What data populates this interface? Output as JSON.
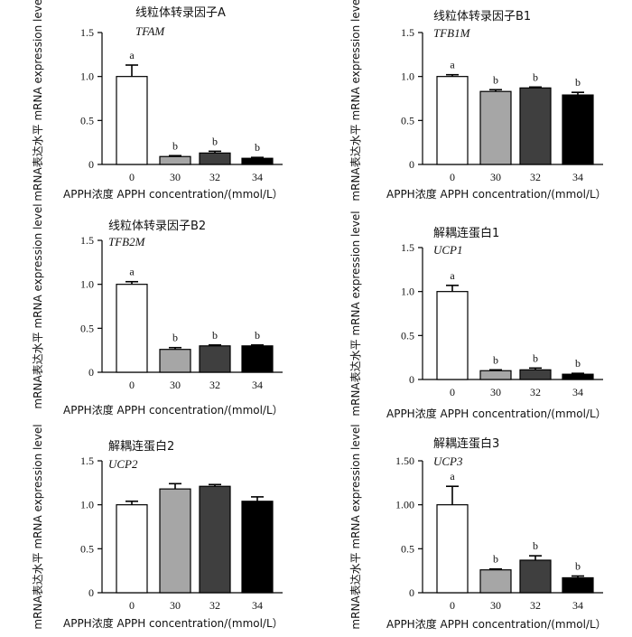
{
  "chart_data": [
    {
      "type": "bar",
      "title": "线粒体转录因子A",
      "subtitle": "TFAM",
      "xlabel": "APPH浓度 APPH concentration/(mmol/L）",
      "ylabel": "mRNA表达水平 mRNA expression level",
      "ylim": [
        0,
        1.5
      ],
      "yticks": [
        0,
        0.5,
        1.0,
        1.5
      ],
      "ytick_labels": [
        "0",
        "0.5",
        "1.0",
        "1.5"
      ],
      "categories": [
        "0",
        "30",
        "32",
        "34"
      ],
      "values": [
        1.0,
        0.09,
        0.13,
        0.07
      ],
      "errors": [
        0.13,
        0.01,
        0.02,
        0.01
      ],
      "significance": [
        "a",
        "b",
        "b",
        "b"
      ],
      "colors": [
        "#ffffff",
        "#a6a6a6",
        "#3f3f3f",
        "#000000"
      ]
    },
    {
      "type": "bar",
      "title": "线粒体转录因子B1",
      "subtitle": "TFB1M",
      "xlabel": "APPH浓度 APPH concentration/(mmol/L）",
      "ylabel": "mRNA表达水平 mRNA expression level",
      "ylim": [
        0,
        1.5
      ],
      "yticks": [
        0,
        0.5,
        1.0,
        1.5
      ],
      "ytick_labels": [
        "0",
        "0.5",
        "1.0",
        "1.5"
      ],
      "categories": [
        "0",
        "30",
        "32",
        "34"
      ],
      "values": [
        1.0,
        0.83,
        0.87,
        0.79
      ],
      "errors": [
        0.02,
        0.02,
        0.01,
        0.03
      ],
      "significance": [
        "a",
        "b",
        "b",
        "b"
      ],
      "colors": [
        "#ffffff",
        "#a6a6a6",
        "#3f3f3f",
        "#000000"
      ]
    },
    {
      "type": "bar",
      "title": "线粒体转录因子B2",
      "subtitle": "TFB2M",
      "xlabel": "APPH浓度 APPH concentration/(mmol/L）",
      "ylabel": "mRNA表达水平 mRNA expression level",
      "ylim": [
        0,
        1.5
      ],
      "yticks": [
        0,
        0.5,
        1.0,
        1.5
      ],
      "ytick_labels": [
        "0",
        "0.5",
        "1.0",
        "1.5"
      ],
      "categories": [
        "0",
        "30",
        "32",
        "34"
      ],
      "values": [
        1.0,
        0.26,
        0.3,
        0.3
      ],
      "errors": [
        0.03,
        0.02,
        0.01,
        0.01
      ],
      "significance": [
        "a",
        "b",
        "b",
        "b"
      ],
      "colors": [
        "#ffffff",
        "#a6a6a6",
        "#3f3f3f",
        "#000000"
      ]
    },
    {
      "type": "bar",
      "title": "解耦连蛋白1",
      "subtitle": "UCP1",
      "xlabel": "APPH浓度 APPH concentration/(mmol/L）",
      "ylabel": "mRNA表达水平 mRNA expression level",
      "ylim": [
        0,
        1.5
      ],
      "yticks": [
        0,
        0.5,
        1.0,
        1.5
      ],
      "ytick_labels": [
        "0",
        "0.5",
        "1.0",
        "1.5"
      ],
      "categories": [
        "0",
        "30",
        "32",
        "34"
      ],
      "values": [
        1.0,
        0.1,
        0.11,
        0.06
      ],
      "errors": [
        0.07,
        0.01,
        0.02,
        0.01
      ],
      "significance": [
        "a",
        "b",
        "b",
        "b"
      ],
      "colors": [
        "#ffffff",
        "#a6a6a6",
        "#3f3f3f",
        "#000000"
      ]
    },
    {
      "type": "bar",
      "title": "解耦连蛋白2",
      "subtitle": "UCP2",
      "xlabel": "APPH浓度 APPH concentration/(mmol/L）",
      "ylabel": "mRNA表达水平 mRNA expression level",
      "ylim": [
        0,
        1.5
      ],
      "yticks": [
        0,
        0.5,
        1.0,
        1.5
      ],
      "ytick_labels": [
        "0",
        "0.5",
        "1.0",
        "1.5"
      ],
      "categories": [
        "0",
        "30",
        "32",
        "34"
      ],
      "values": [
        1.0,
        1.18,
        1.21,
        1.04
      ],
      "errors": [
        0.04,
        0.06,
        0.02,
        0.05
      ],
      "significance": [
        "",
        "",
        "",
        ""
      ],
      "colors": [
        "#ffffff",
        "#a6a6a6",
        "#3f3f3f",
        "#000000"
      ]
    },
    {
      "type": "bar",
      "title": "解耦连蛋白3",
      "subtitle": "UCP3",
      "xlabel": "APPH浓度 APPH concentration/(mmol/L）",
      "ylabel": "mRNA表达水平 mRNA expression level",
      "ylim": [
        0,
        1.5
      ],
      "yticks": [
        0,
        0.5,
        1.0,
        1.5
      ],
      "ytick_labels": [
        "0",
        "0.5",
        "1.00",
        "1.50"
      ],
      "categories": [
        "0",
        "30",
        "32",
        "34"
      ],
      "values": [
        1.0,
        0.26,
        0.37,
        0.17
      ],
      "errors": [
        0.21,
        0.01,
        0.05,
        0.02
      ],
      "significance": [
        "a",
        "b",
        "b",
        "b"
      ],
      "colors": [
        "#ffffff",
        "#a6a6a6",
        "#3f3f3f",
        "#000000"
      ]
    }
  ]
}
